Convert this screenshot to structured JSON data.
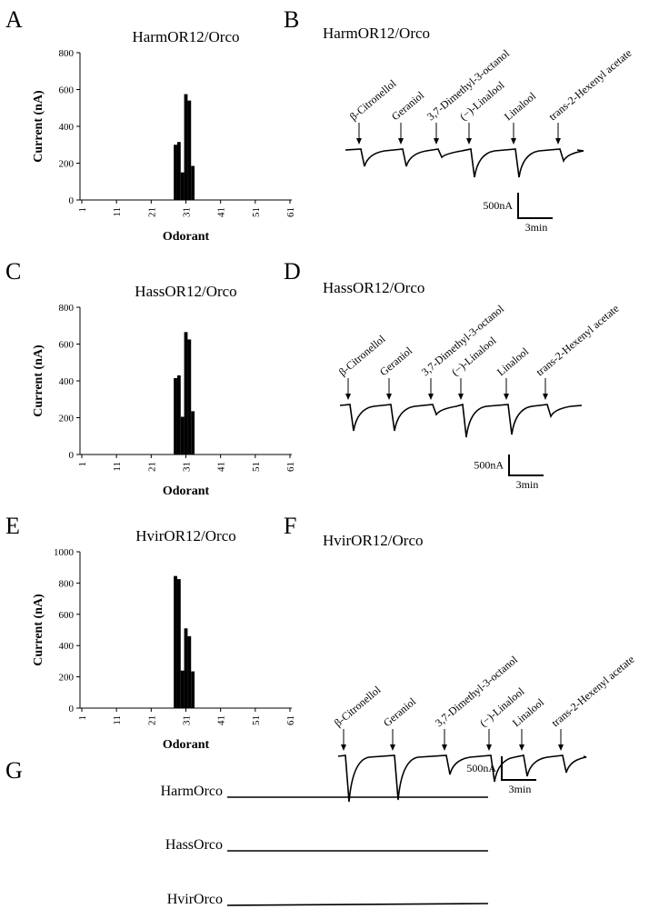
{
  "panel_letters": [
    "A",
    "B",
    "C",
    "D",
    "E",
    "F",
    "G"
  ],
  "chart_data": [
    {
      "type": "bar",
      "title": "HarmOR12/Orco",
      "xlabel": "Odorant",
      "ylabel": "Current (nA)",
      "color": "#000000",
      "x": [
        28,
        29,
        30,
        31,
        32,
        33
      ],
      "values": [
        300,
        315,
        150,
        575,
        540,
        185
      ],
      "xlim": [
        1,
        61
      ],
      "xticks": [
        1,
        11,
        21,
        31,
        41,
        51,
        61
      ],
      "ylim": [
        0,
        800
      ],
      "yticks": [
        0,
        200,
        400,
        600,
        800
      ]
    },
    {
      "type": "bar",
      "title": "HassOR12/Orco",
      "xlabel": "Odorant",
      "ylabel": "Current (nA)",
      "color": "#000000",
      "x": [
        28,
        29,
        30,
        31,
        32,
        33
      ],
      "values": [
        415,
        430,
        205,
        665,
        625,
        235
      ],
      "xlim": [
        1,
        61
      ],
      "xticks": [
        1,
        11,
        21,
        31,
        41,
        51,
        61
      ],
      "ylim": [
        0,
        800
      ],
      "yticks": [
        0,
        200,
        400,
        600,
        800
      ]
    },
    {
      "type": "bar",
      "title": "HvirOR12/Orco",
      "xlabel": "Odorant",
      "ylabel": "Current (nA)",
      "color": "#000000",
      "x": [
        28,
        29,
        30,
        31,
        32,
        33
      ],
      "values": [
        845,
        825,
        240,
        510,
        460,
        235
      ],
      "xlim": [
        1,
        61
      ],
      "xticks": [
        1,
        11,
        21,
        31,
        41,
        51,
        61
      ],
      "ylim": [
        0,
        1000
      ],
      "yticks": [
        0,
        200,
        400,
        600,
        800,
        1000
      ]
    }
  ],
  "traces": [
    {
      "title": "HarmOR12/Orco",
      "odorants": [
        "β-Citronellol",
        "Geraniol",
        "3,7-Dimethyl-3-octanol",
        "(−)-Linalool",
        "Linalool",
        "trans-2-Hexenyl acetate"
      ],
      "scale_y": "500nA",
      "scale_x": "3min"
    },
    {
      "title": "HassOR12/Orco",
      "odorants": [
        "β-Citronellol",
        "Geraniol",
        "3,7-Dimethyl-3-octanol",
        "(−)-Linalool",
        "Linalool",
        "trans-2-Hexenyl acetate"
      ],
      "scale_y": "500nA",
      "scale_x": "3min"
    },
    {
      "title": "HvirOR12/Orco",
      "odorants": [
        "β-Citronellol",
        "Geraniol",
        "3,7-Dimethyl-3-octanol",
        "(−)-Linalool",
        "Linalool",
        "trans-2-Hexenyl acetate"
      ],
      "scale_y": "500nA",
      "scale_x": "3min"
    }
  ],
  "orco_controls": [
    "HarmOrco",
    "HassOrco",
    "HvirOrco"
  ]
}
